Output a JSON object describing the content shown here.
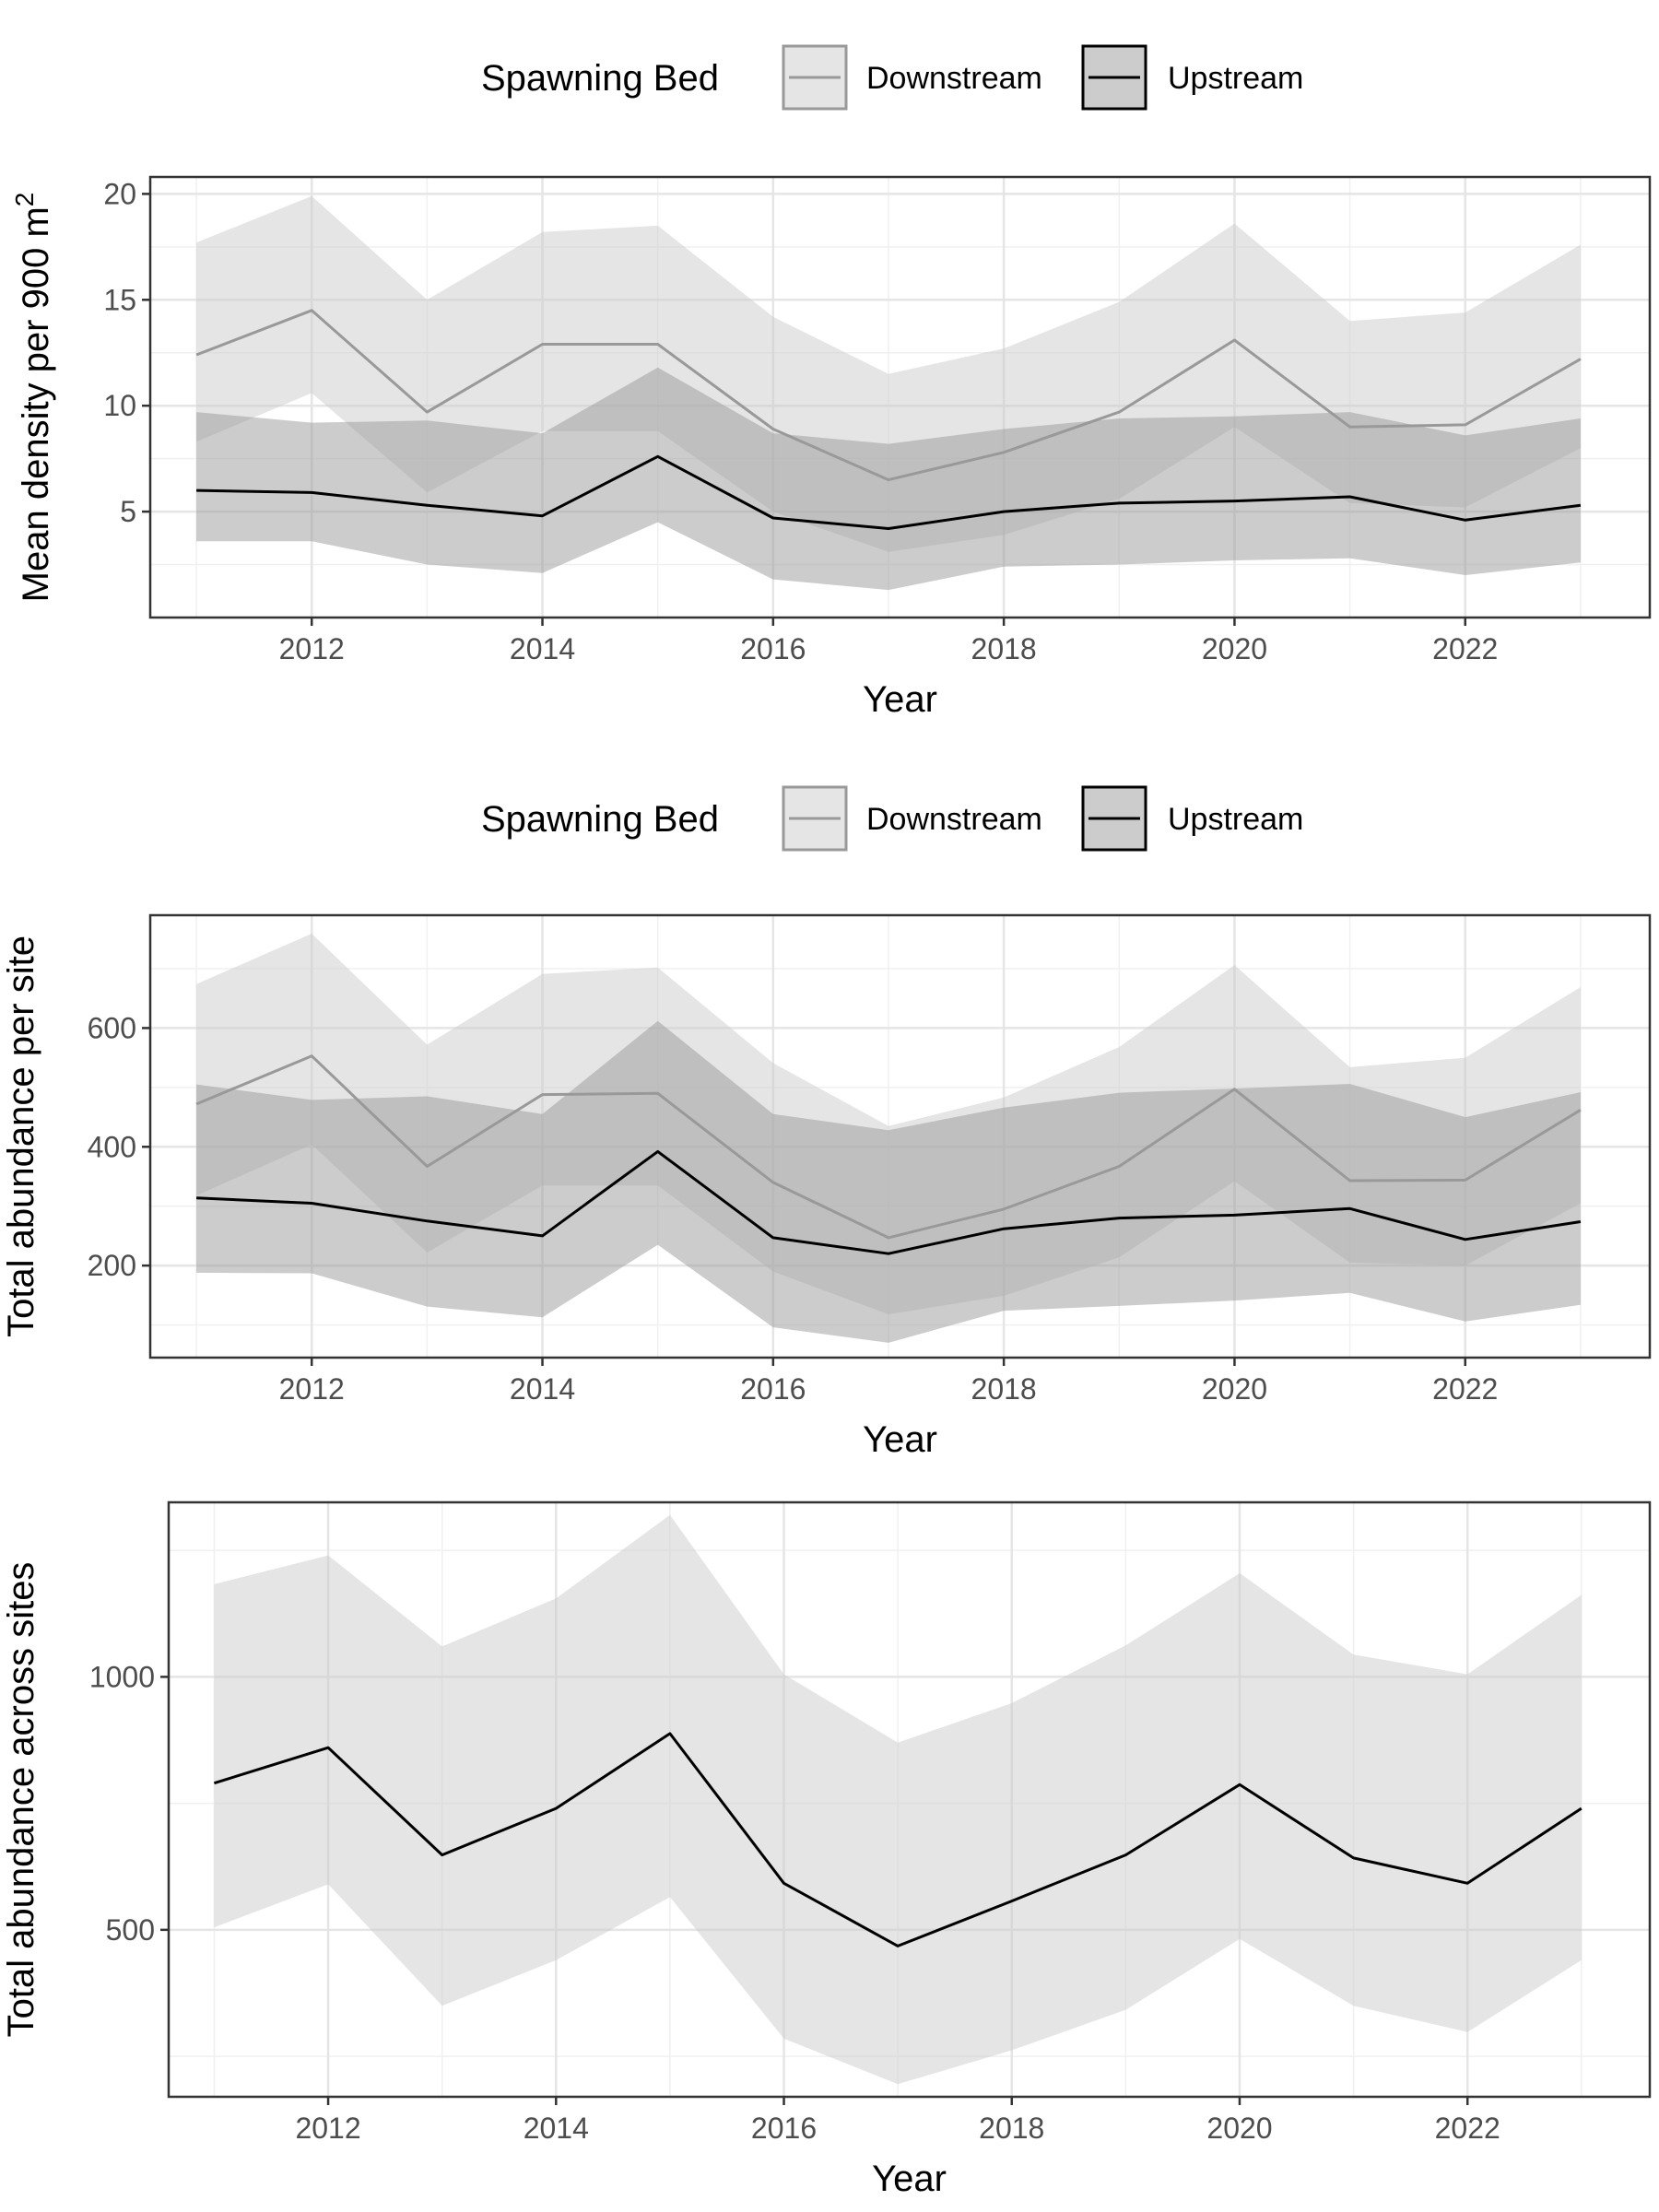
{
  "chart_data": [
    {
      "type": "line",
      "xlabel": "Year",
      "ylabel": "Mean density per 900 m",
      "ylabel_superscript": "2",
      "xlim": [
        2010.6,
        2023.6
      ],
      "ylim": [
        0,
        20.8
      ],
      "xticks": [
        2012,
        2014,
        2016,
        2018,
        2020,
        2022
      ],
      "yticks": [
        5,
        10,
        15,
        20
      ],
      "legend": {
        "title": "Spawning Bed",
        "position": "top"
      },
      "x": [
        2011,
        2012,
        2013,
        2014,
        2015,
        2016,
        2017,
        2018,
        2019,
        2020,
        2021,
        2022,
        2023
      ],
      "series": [
        {
          "name": "Downstream",
          "line_color": "#999999",
          "band_color": "#cccccc",
          "values": [
            12.4,
            14.5,
            9.7,
            12.9,
            12.9,
            8.9,
            6.5,
            7.8,
            9.7,
            13.1,
            9.0,
            9.1,
            12.2
          ],
          "upper": [
            17.7,
            19.9,
            15.0,
            18.2,
            18.5,
            14.2,
            11.5,
            12.7,
            14.9,
            18.6,
            14.0,
            14.4,
            17.6
          ],
          "lower": [
            8.3,
            10.6,
            5.9,
            8.8,
            8.8,
            5.0,
            3.1,
            3.9,
            5.6,
            9.0,
            5.4,
            5.2,
            8.0
          ]
        },
        {
          "name": "Upstream",
          "line_color": "#000000",
          "band_color": "#999999",
          "values": [
            6.0,
            5.9,
            5.3,
            4.8,
            7.6,
            4.7,
            4.2,
            5.0,
            5.4,
            5.5,
            5.7,
            4.6,
            5.3
          ],
          "upper": [
            9.7,
            9.2,
            9.3,
            8.7,
            11.8,
            8.7,
            8.2,
            8.9,
            9.4,
            9.5,
            9.7,
            8.6,
            9.4
          ],
          "lower": [
            3.6,
            3.6,
            2.5,
            2.1,
            4.5,
            1.8,
            1.3,
            2.4,
            2.5,
            2.7,
            2.8,
            2.0,
            2.6
          ]
        }
      ]
    },
    {
      "type": "line",
      "xlabel": "Year",
      "ylabel": "Total abundance per site",
      "xlim": [
        2010.6,
        2023.6
      ],
      "ylim": [
        45,
        790
      ],
      "xticks": [
        2012,
        2014,
        2016,
        2018,
        2020,
        2022
      ],
      "yticks": [
        200,
        400,
        600
      ],
      "legend": {
        "title": "Spawning Bed",
        "position": "top"
      },
      "x": [
        2011,
        2012,
        2013,
        2014,
        2015,
        2016,
        2017,
        2018,
        2019,
        2020,
        2021,
        2022,
        2023
      ],
      "series": [
        {
          "name": "Downstream",
          "line_color": "#999999",
          "band_color": "#cccccc",
          "values": [
            472,
            553,
            367,
            488,
            490,
            340,
            247,
            295,
            367,
            497,
            343,
            344,
            462
          ],
          "upper": [
            674,
            759,
            572,
            691,
            702,
            541,
            435,
            483,
            568,
            706,
            534,
            550,
            669
          ],
          "lower": [
            318,
            404,
            222,
            335,
            335,
            190,
            118,
            149,
            214,
            342,
            205,
            200,
            305
          ]
        },
        {
          "name": "Upstream",
          "line_color": "#000000",
          "band_color": "#999999",
          "values": [
            314,
            305,
            275,
            250,
            392,
            247,
            220,
            262,
            280,
            285,
            296,
            244,
            274
          ],
          "upper": [
            505,
            479,
            485,
            455,
            612,
            455,
            428,
            466,
            491,
            498,
            506,
            450,
            492
          ],
          "lower": [
            188,
            187,
            131,
            113,
            235,
            96,
            70,
            124,
            132,
            141,
            154,
            106,
            134
          ]
        }
      ]
    },
    {
      "type": "line",
      "xlabel": "Year",
      "ylabel": "Total abundance across sites",
      "xlim": [
        2010.6,
        2023.6
      ],
      "ylim": [
        170,
        1345
      ],
      "xticks": [
        2012,
        2014,
        2016,
        2018,
        2020,
        2022
      ],
      "yticks": [
        500,
        1000
      ],
      "x": [
        2011,
        2012,
        2013,
        2014,
        2015,
        2016,
        2017,
        2018,
        2019,
        2020,
        2021,
        2022,
        2023
      ],
      "series": [
        {
          "line_color": "#000000",
          "band_color": "#cccccc",
          "values": [
            790,
            860,
            648,
            740,
            888,
            592,
            468,
            557,
            648,
            787,
            642,
            592,
            740
          ],
          "upper": [
            1183,
            1240,
            1060,
            1155,
            1320,
            1005,
            870,
            948,
            1062,
            1205,
            1044,
            1005,
            1162
          ],
          "lower": [
            505,
            590,
            350,
            440,
            565,
            285,
            195,
            262,
            342,
            482,
            350,
            298,
            440
          ]
        }
      ]
    }
  ]
}
